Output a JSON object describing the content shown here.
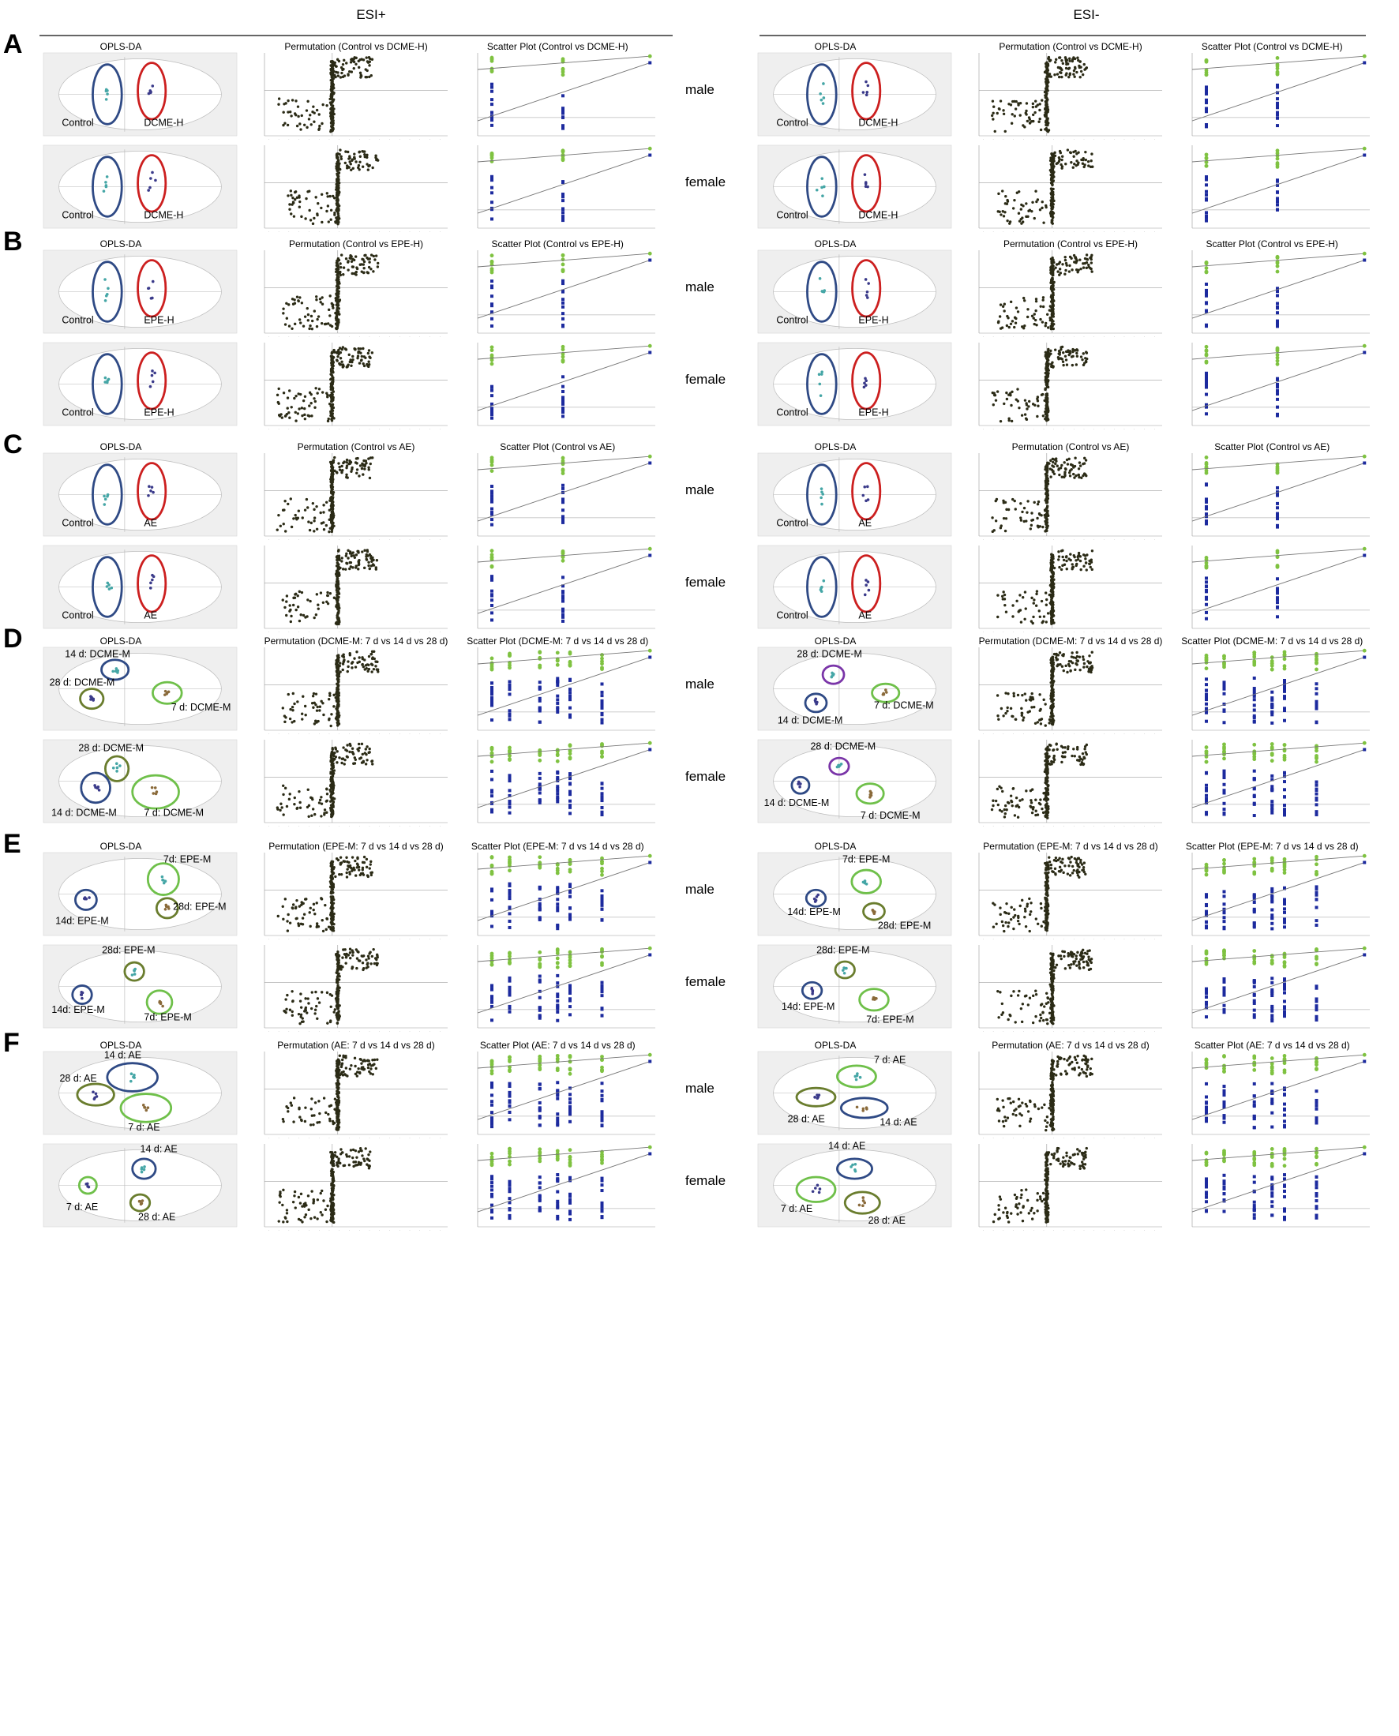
{
  "header": {
    "left": "ESI+",
    "right": "ESI-"
  },
  "sex_labels": [
    "male",
    "female"
  ],
  "titles": {
    "opls": "OPLS-DA",
    "perm": "Permutation",
    "scatter": "Scatter Plot"
  },
  "colors": {
    "control_ellipse": "#2f4a85",
    "treat_ellipse": "#cc1f1f",
    "light_green_ellipse": "#6fc04a",
    "olive_ellipse": "#6a7d2e",
    "purple_ellipse": "#7a35a8",
    "scatter_r2": "#7fc241",
    "scatter_q2": "#1c2a9e",
    "perm_points": "#2b2b16",
    "panel_bg": "#efefef"
  },
  "chart_data": [
    {
      "id": "A",
      "type": "scatter",
      "comparison": "Control vs DCME-H",
      "perm_title": "Permutation (Control vs DCME-H)",
      "scatter_title": "Scatter Plot (Control vs DCME-H)",
      "esi_pos": {
        "male": {
          "groups": [
            "Control",
            "DCME-H"
          ]
        },
        "female": {
          "groups": [
            "Control",
            "DCME-H"
          ]
        }
      },
      "esi_neg": {
        "male": {
          "groups": [
            "Control",
            "DCME-H"
          ]
        },
        "female": {
          "groups": [
            "Control",
            "DCME-H"
          ]
        }
      }
    },
    {
      "id": "B",
      "type": "scatter",
      "comparison": "Control vs EPE-H",
      "perm_title": "Permutation (Control vs EPE-H)",
      "scatter_title": "Scatter Plot (Control vs EPE-H)",
      "esi_pos": {
        "male": {
          "groups": [
            "Control",
            "EPE-H"
          ]
        },
        "female": {
          "groups": [
            "Control",
            "EPE-H"
          ]
        }
      },
      "esi_neg": {
        "male": {
          "groups": [
            "Control",
            "EPE-H"
          ]
        },
        "female": {
          "groups": [
            "Control",
            "EPE-H"
          ]
        }
      }
    },
    {
      "id": "C",
      "type": "scatter",
      "comparison": "Control vs AE",
      "perm_title": "Permutation (Control vs AE)",
      "scatter_title": "Scatter Plot (Control vs AE)",
      "esi_pos": {
        "male": {
          "groups": [
            "Control",
            "AE"
          ]
        },
        "female": {
          "groups": [
            "Control",
            "AE"
          ]
        }
      },
      "esi_neg": {
        "male": {
          "groups": [
            "Control",
            "AE"
          ]
        },
        "female": {
          "groups": [
            "Control",
            "AE"
          ]
        }
      }
    },
    {
      "id": "D",
      "type": "scatter",
      "comparison": "DCME-M: 7 d vs 14 d vs 28 d",
      "perm_title": "Permutation (DCME-M: 7 d vs 14 d vs 28 d)",
      "scatter_title": "Scatter Plot (DCME-M: 7 d vs 14 d vs 28 d)",
      "esi_pos": {
        "male": {
          "groups": [
            "14 d: DCME-M",
            "28 d: DCME-M",
            "7 d: DCME-M"
          ]
        },
        "female": {
          "groups": [
            "28 d: DCME-M",
            "14 d: DCME-M",
            "7 d: DCME-M"
          ]
        }
      },
      "esi_neg": {
        "male": {
          "groups": [
            "28 d: DCME-M",
            "14 d: DCME-M",
            "7 d: DCME-M"
          ]
        },
        "female": {
          "groups": [
            "28 d: DCME-M",
            "14 d: DCME-M",
            "7 d: DCME-M"
          ]
        }
      }
    },
    {
      "id": "E",
      "type": "scatter",
      "comparison": "EPE-M: 7 d vs 14 d vs 28 d",
      "perm_title": "Permutation (EPE-M: 7 d vs 14 d vs 28 d)",
      "scatter_title": "Scatter Plot (EPE-M: 7 d vs 14 d vs 28 d)",
      "esi_pos": {
        "male": {
          "groups": [
            "7d: EPE-M",
            "14d: EPE-M",
            "28d: EPE-M"
          ]
        },
        "female": {
          "groups": [
            "28d: EPE-M",
            "14d: EPE-M",
            "7d: EPE-M"
          ]
        }
      },
      "esi_neg": {
        "male": {
          "groups": [
            "7d: EPE-M",
            "14d: EPE-M",
            "28d: EPE-M"
          ]
        },
        "female": {
          "groups": [
            "28d: EPE-M",
            "14d: EPE-M",
            "7d: EPE-M"
          ]
        }
      }
    },
    {
      "id": "F",
      "type": "scatter",
      "comparison": "AE: 7 d vs 14 d vs 28 d",
      "perm_title": "Permutation (AE: 7 d vs 14 d vs 28 d)",
      "scatter_title": "Scatter Plot (AE: 7 d vs 14 d vs 28 d)",
      "esi_pos": {
        "male": {
          "groups": [
            "14 d: AE",
            "28 d: AE",
            "7 d: AE"
          ]
        },
        "female": {
          "groups": [
            "14 d: AE",
            "7 d: AE",
            "28 d: AE"
          ]
        }
      },
      "esi_neg": {
        "male": {
          "groups": [
            "7 d: AE",
            "28 d: AE",
            "14 d: AE"
          ]
        },
        "female": {
          "groups": [
            "14 d: AE",
            "7 d: AE",
            "28 d: AE"
          ]
        }
      }
    }
  ]
}
